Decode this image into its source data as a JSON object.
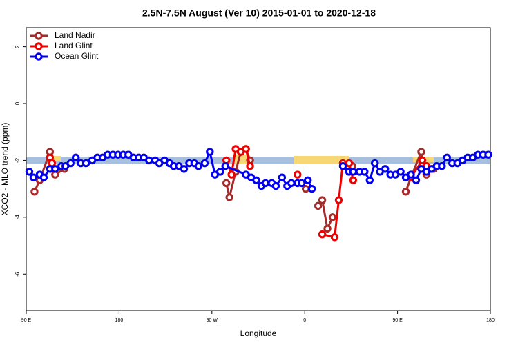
{
  "chart_data": {
    "type": "line",
    "title": "2.5N-7.5N August (Ver 10)   2015-01-01 to 2020-12-18",
    "x_label": "Longitude",
    "y_label": "XCO2 - MLO trend (ppm)",
    "xlim": [
      90,
      540
    ],
    "ylim": [
      -7.28,
      2.67
    ],
    "xticks": [
      {
        "value": 90,
        "label": "90 E"
      },
      180,
      {
        "value": 270,
        "label": "90 W"
      },
      {
        "value": 360,
        "label": "0"
      },
      {
        "value": 450,
        "label": "90 E"
      },
      {
        "value": 540,
        "label": "180"
      }
    ],
    "yticks": [
      2,
      0,
      -2,
      -4,
      -6
    ],
    "legend": "top-left",
    "series": [
      {
        "name": "Land Nadir",
        "color": "#a52a2a",
        "x": [
          98,
          103,
          113,
          118,
          127,
          null,
          284,
          287,
          293,
          298,
          303,
          307,
          null,
          361,
          null,
          373,
          377,
          382,
          387,
          null,
          406,
          null,
          458,
          463,
          473,
          478,
          485
        ],
        "values": [
          -3.1,
          -2.7,
          -1.7,
          -2.5,
          -2.3,
          null,
          -2.8,
          -3.3,
          -2.4,
          -1.7,
          -1.6,
          -2.0,
          null,
          -3.0,
          null,
          -3.6,
          -3.4,
          -4.4,
          -4.0,
          null,
          -2.2,
          null,
          -3.1,
          -2.6,
          -1.7,
          -2.5,
          -2.3
        ]
      },
      {
        "name": "Land Glint",
        "color": "#ee0000",
        "x": [
          113,
          115,
          null,
          284,
          289,
          293,
          298,
          303,
          307,
          null,
          353,
          null,
          377,
          389,
          393,
          397,
          403,
          407,
          null,
          463,
          474,
          478
        ],
        "values": [
          -1.9,
          -2.1,
          null,
          -2.0,
          -2.5,
          -1.6,
          -1.7,
          -1.6,
          -2.2,
          null,
          -2.5,
          null,
          -4.6,
          -4.7,
          -3.4,
          -2.1,
          -2.1,
          -2.7,
          null,
          -2.6,
          -2.0,
          -2.2
        ]
      },
      {
        "name": "Ocean Glint",
        "color": "#0000ee",
        "x": [
          93,
          97,
          103,
          107,
          113,
          118,
          124,
          128,
          133,
          138,
          143,
          148,
          154,
          159,
          164,
          169,
          174,
          179,
          184,
          189,
          194,
          199,
          204,
          209,
          215,
          219,
          224,
          229,
          233,
          238,
          243,
          248,
          253,
          257,
          263,
          268,
          273,
          278,
          283,
          303,
          308,
          313,
          318,
          322,
          328,
          332,
          338,
          343,
          347,
          353,
          357,
          363,
          367,
          null,
          397,
          403,
          407,
          413,
          418,
          423,
          428,
          433,
          438,
          443,
          448,
          453,
          458,
          463,
          468,
          473,
          478,
          483,
          488,
          493,
          498,
          503,
          508,
          513,
          518,
          523,
          528,
          533,
          538
        ],
        "values": [
          -2.4,
          -2.6,
          -2.5,
          -2.6,
          -2.3,
          -2.3,
          -2.2,
          -2.2,
          -2.1,
          -1.9,
          -2.1,
          -2.1,
          -2.0,
          -1.9,
          -1.9,
          -1.8,
          -1.8,
          -1.8,
          -1.8,
          -1.8,
          -1.9,
          -1.9,
          -1.9,
          -2.0,
          -2.0,
          -2.1,
          -2.0,
          -2.1,
          -2.2,
          -2.2,
          -2.3,
          -2.1,
          -2.1,
          -2.2,
          -2.1,
          -1.7,
          -2.5,
          -2.4,
          -2.2,
          -2.5,
          -2.6,
          -2.7,
          -2.9,
          -2.8,
          -2.8,
          -2.9,
          -2.6,
          -2.9,
          -2.8,
          -2.8,
          -2.8,
          -2.7,
          -3.0,
          null,
          -2.2,
          -2.4,
          -2.4,
          -2.4,
          -2.4,
          -2.7,
          -2.1,
          -2.4,
          -2.3,
          -2.5,
          -2.5,
          -2.4,
          -2.6,
          -2.5,
          -2.7,
          -2.3,
          -2.4,
          -2.3,
          -2.2,
          -2.2,
          -1.9,
          -2.1,
          -2.1,
          -2.0,
          -1.9,
          -1.9,
          -1.8,
          -1.8,
          -1.8
        ]
      }
    ]
  }
}
